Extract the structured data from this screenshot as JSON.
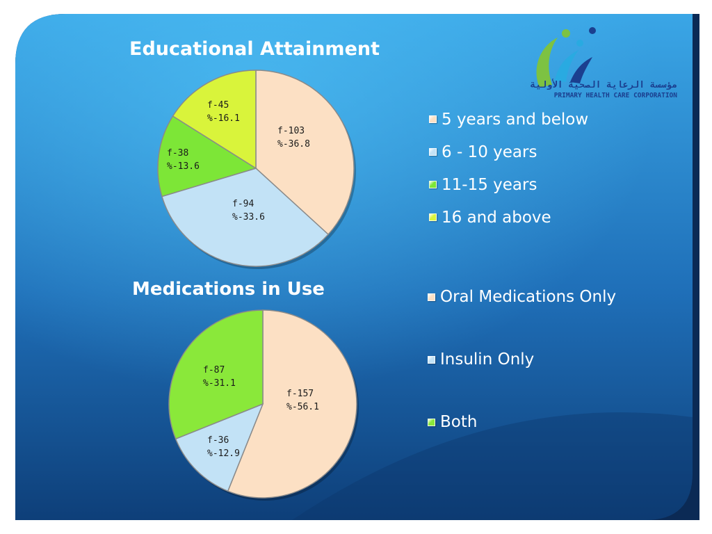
{
  "slide": {
    "colors": {
      "background_top": "#3aa6e6",
      "background_bottom": "#0e3f79",
      "frame": "#0b2a55"
    }
  },
  "logo": {
    "arabic_text": "مؤسسة الرعاية الصحية الأولية",
    "english_text": "PRIMARY HEALTH CARE CORPORATION",
    "colors": [
      "#7dc242",
      "#29aae1",
      "#1b3f8f"
    ]
  },
  "chart_data": [
    {
      "type": "pie",
      "title": "Educational Attainment",
      "legend_position": "right",
      "categories": [
        "5 years and below",
        "6 - 10 years",
        "11-15 years",
        "16 and above"
      ],
      "values": [
        103,
        94,
        38,
        45
      ],
      "percentages": [
        36.8,
        33.6,
        13.6,
        16.1
      ],
      "data_labels": [
        {
          "freq": "f-103",
          "pct": "%-36.8"
        },
        {
          "freq": "f-94",
          "pct": "%-33.6"
        },
        {
          "freq": "f-38",
          "pct": "%-13.6"
        },
        {
          "freq": "f-45",
          "pct": "%-16.1"
        }
      ],
      "colors": [
        "#fce0c4",
        "#c2e2f6",
        "#7de637",
        "#d9f43b"
      ]
    },
    {
      "type": "pie",
      "title": "Medications in Use",
      "legend_position": "right",
      "categories": [
        "Oral Medications Only",
        "Insulin Only",
        "Both"
      ],
      "values": [
        157,
        36,
        87
      ],
      "percentages": [
        56.1,
        12.9,
        31.1
      ],
      "data_labels": [
        {
          "freq": "f-157",
          "pct": "%-56.1"
        },
        {
          "freq": "f-36",
          "pct": "%-12.9"
        },
        {
          "freq": "f-87",
          "pct": "%-31.1"
        }
      ],
      "colors": [
        "#fce0c4",
        "#c2e2f6",
        "#8ae83a"
      ]
    }
  ]
}
